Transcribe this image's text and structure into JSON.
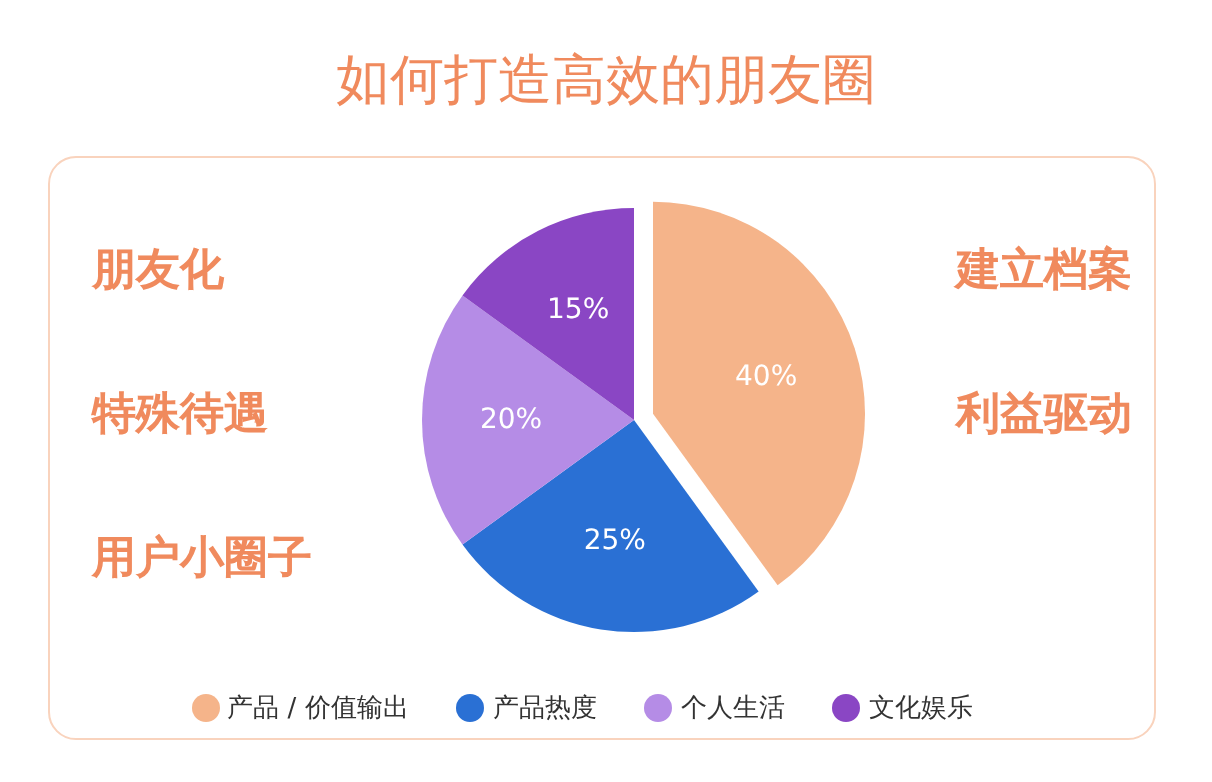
{
  "chart_data": {
    "type": "pie",
    "title": "如何打造高效的朋友圈",
    "categories": [
      "产品 / 价值输出",
      "产品热度",
      "个人生活",
      "文化娱乐"
    ],
    "values": [
      40,
      25,
      20,
      15
    ],
    "colors": [
      "#f5b48a",
      "#2a70d4",
      "#b58ce6",
      "#8a46c4"
    ],
    "value_labels": [
      "40%",
      "25%",
      "20%",
      "15%"
    ],
    "legend": "bottom",
    "annotations": [
      "朋友化",
      "特殊待遇",
      "用户小圈子",
      "建立档案",
      "利益驱动"
    ]
  }
}
